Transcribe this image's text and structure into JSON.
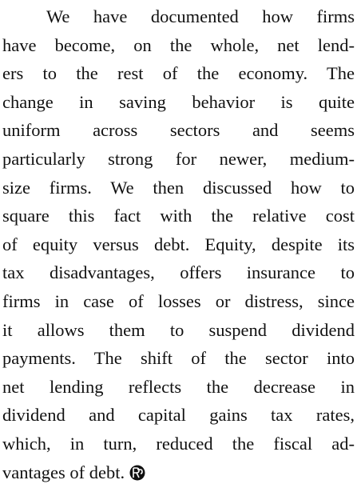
{
  "paragraph": {
    "lines": [
      "We have documented how firms",
      "have become, on the whole, net lend-",
      "ers to the rest of the economy. The",
      "change in saving behavior is quite",
      "uniform across sectors and seems",
      "particularly strong for newer, medium-",
      "size firms. We then discussed how to",
      "square this fact with the relative cost",
      "of equity versus debt. Equity, despite its",
      "tax disadvantages, offers insurance to",
      "firms in case of losses or distress, since",
      "it allows them to suspend dividend",
      "payments. The shift of the sector into",
      "net lending reflects the decrease in",
      "dividend and capital gains tax rates,",
      "which, in turn, reduced the fiscal ad-",
      "vantages of debt."
    ]
  }
}
